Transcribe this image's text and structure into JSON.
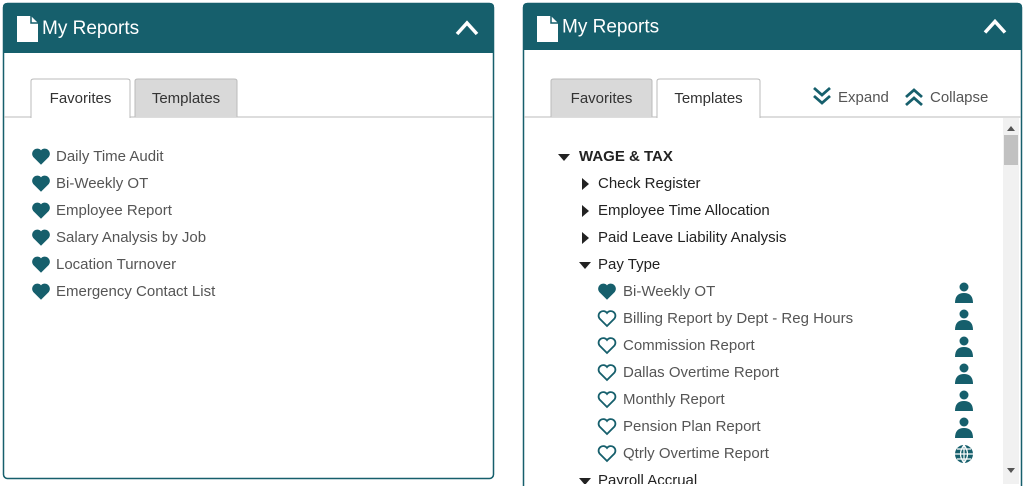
{
  "panels": [
    {
      "title": "My Reports",
      "tabs": [
        "Favorites",
        "Templates"
      ],
      "active_tab": 0,
      "items": [
        "Daily Time Audit",
        "Bi-Weekly OT",
        "Employee Report",
        "Salary Analysis by Job",
        "Location Turnover",
        "Emergency Contact List"
      ]
    },
    {
      "title": "My Reports",
      "tabs": [
        "Favorites",
        "Templates"
      ],
      "active_tab": 1,
      "expand": "Expand",
      "collapse": "Collapse",
      "tree": {
        "label": "WAGE & TAX",
        "expanded": true,
        "children": [
          {
            "label": "Check Register",
            "expanded": false
          },
          {
            "label": "Employee Time Allocation",
            "expanded": false
          },
          {
            "label": "Paid Leave Liability Analysis",
            "expanded": false
          },
          {
            "label": "Pay Type",
            "expanded": true,
            "reports": [
              {
                "label": "Bi-Weekly OT",
                "favorite": true,
                "icon": "user"
              },
              {
                "label": "Billing Report by Dept - Reg Hours",
                "favorite": false,
                "icon": "user"
              },
              {
                "label": "Commission Report",
                "favorite": false,
                "icon": "user"
              },
              {
                "label": "Dallas Overtime Report",
                "favorite": false,
                "icon": "user"
              },
              {
                "label": "Monthly Report",
                "favorite": false,
                "icon": "user"
              },
              {
                "label": "Pension Plan Report",
                "favorite": false,
                "icon": "user"
              },
              {
                "label": "Qtrly Overtime Report",
                "favorite": false,
                "icon": "globe"
              }
            ]
          },
          {
            "label": "Payroll Accrual",
            "expanded": true
          }
        ]
      }
    }
  ]
}
